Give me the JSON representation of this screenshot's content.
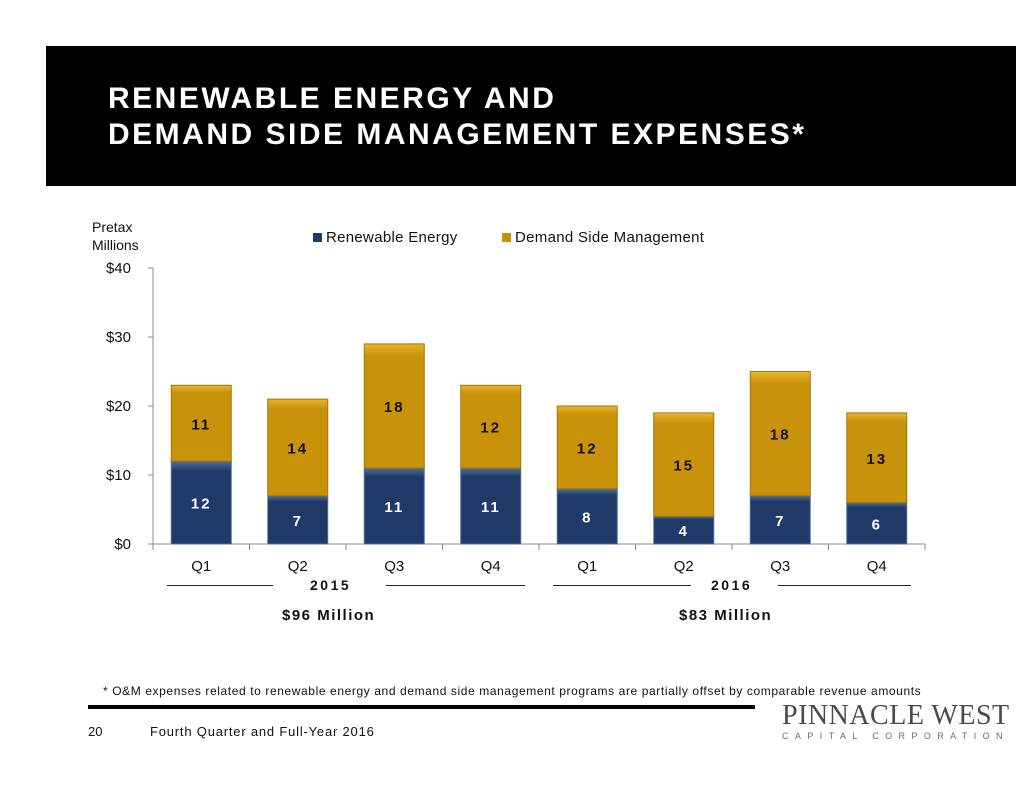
{
  "header": {
    "title_line1": "RENEWABLE ENERGY AND",
    "title_line2": "DEMAND SIDE MANAGEMENT EXPENSES*"
  },
  "axis_unit_label": "Pretax\nMillions",
  "legend": {
    "renewable": "Renewable Energy",
    "dsm": "Demand Side Management"
  },
  "years": [
    {
      "label": "2015",
      "total": "$96 Million"
    },
    {
      "label": "2016",
      "total": "$83 Million"
    }
  ],
  "footnote": "* O&M expenses related to renewable energy and demand side management programs are partially offset by comparable revenue amounts",
  "footer": {
    "page_number": "20",
    "text": "Fourth Quarter and Full-Year 2016"
  },
  "logo": {
    "name": "PINNACLE WEST",
    "sub": "CAPITAL CORPORATION"
  },
  "colors": {
    "renewable": "#1f3a66",
    "renewable_light": "#4f6f9f",
    "dsm": "#c8920a",
    "dsm_light": "#e8b52a",
    "header_bg": "#000000"
  },
  "chart_data": {
    "type": "bar",
    "stacked": true,
    "categories": [
      "Q1",
      "Q2",
      "Q3",
      "Q4",
      "Q1",
      "Q2",
      "Q3",
      "Q4"
    ],
    "series": [
      {
        "name": "Renewable Energy",
        "values": [
          12,
          7,
          11,
          11,
          8,
          4,
          7,
          6
        ]
      },
      {
        "name": "Demand Side Management",
        "values": [
          11,
          14,
          18,
          12,
          12,
          15,
          18,
          13
        ]
      }
    ],
    "yticks": [
      "$0",
      "$10",
      "$20",
      "$30",
      "$40"
    ],
    "ylim": [
      0,
      40
    ],
    "ylabel": "Pretax Millions",
    "legend_position": "top"
  }
}
